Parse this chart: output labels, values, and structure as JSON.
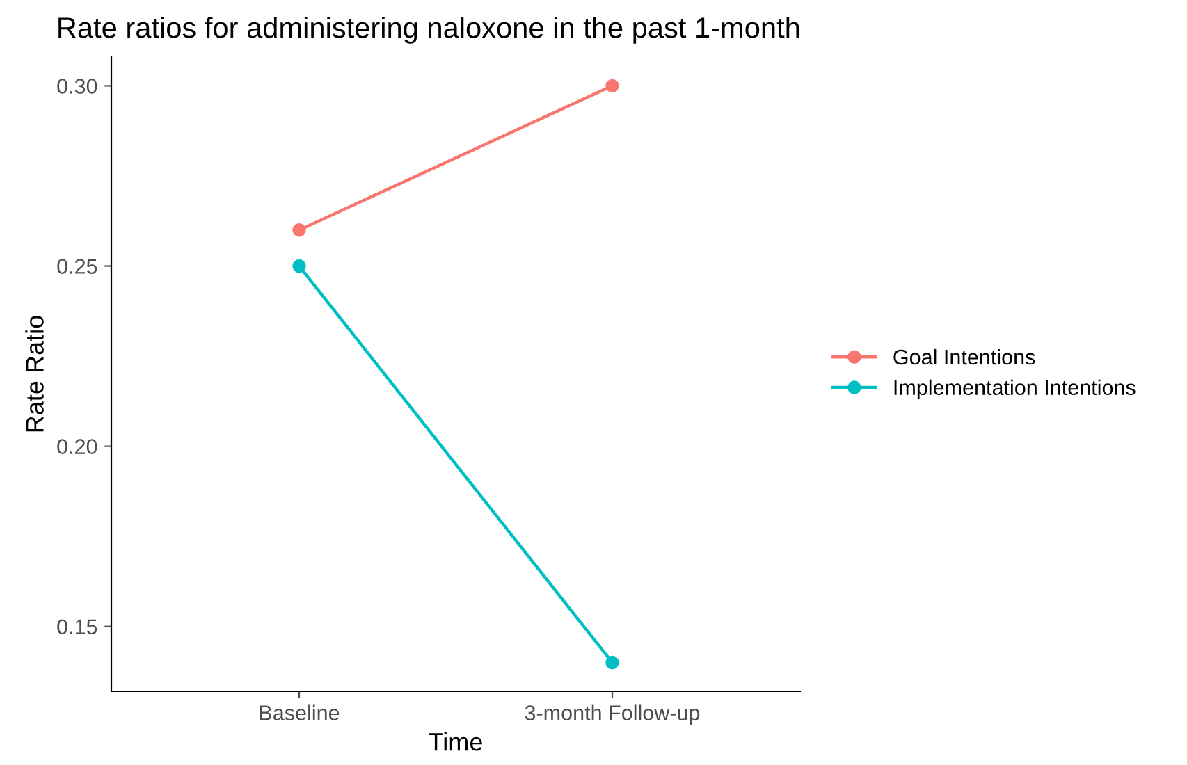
{
  "chart_data": {
    "type": "line",
    "title": "Rate ratios for administering naloxone in the past 1-month",
    "xlabel": "Time",
    "ylabel": "Rate Ratio",
    "categories": [
      "Baseline",
      "3-month Follow-up"
    ],
    "series": [
      {
        "name": "Goal Intentions",
        "color": "#f8766d",
        "values": [
          0.26,
          0.3
        ]
      },
      {
        "name": "Implementation Intentions",
        "color": "#00bfc4",
        "values": [
          0.25,
          0.14
        ]
      }
    ],
    "ylim": [
      0.132,
      0.308
    ],
    "yticks": [
      {
        "value": 0.15,
        "label": "0.15"
      },
      {
        "value": 0.2,
        "label": "0.20"
      },
      {
        "value": 0.25,
        "label": "0.25"
      },
      {
        "value": 0.3,
        "label": "0.30"
      }
    ],
    "grid": false,
    "legend": "right",
    "marker": "circle",
    "line_style": "solid"
  }
}
